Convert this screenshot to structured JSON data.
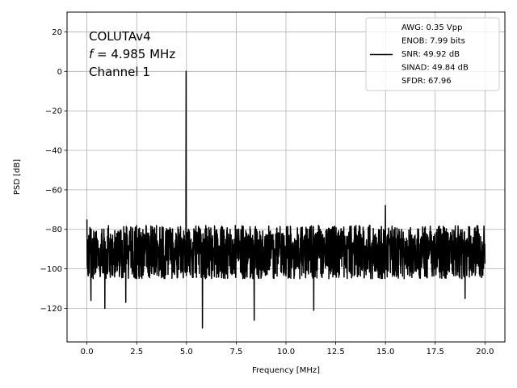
{
  "chart_data": {
    "type": "line",
    "title": "",
    "xlabel": "Frequency [MHz]",
    "ylabel": "PSD [dB]",
    "xlim": [
      -1.0,
      21.0
    ],
    "ylim": [
      -137,
      30
    ],
    "xticks": [
      0.0,
      2.5,
      5.0,
      7.5,
      10.0,
      12.5,
      15.0,
      17.5,
      20.0
    ],
    "xtick_labels": [
      "0.0",
      "2.5",
      "5.0",
      "7.5",
      "10.0",
      "12.5",
      "15.0",
      "17.5",
      "20.0"
    ],
    "yticks": [
      20,
      0,
      -20,
      -40,
      -60,
      -80,
      -100,
      -120
    ],
    "ytick_labels": [
      "20",
      "0",
      "−20",
      "−40",
      "−60",
      "−80",
      "−100",
      "−120"
    ],
    "grid": true,
    "annotation": {
      "line1": "COLUTAv4",
      "line2_var": "f",
      "line2_rest": " = 4.985 MHz",
      "line3": "Channel 1"
    },
    "legend": {
      "placement": "top-right",
      "entries": [
        "AWG: 0.35 Vpp",
        "ENOB: 7.99 bits",
        "SNR: 49.92 dB",
        "SINAD: 49.84 dB",
        "SFDR: 67.96"
      ]
    },
    "series": [
      {
        "color": "#000000",
        "noise_floor_db": -90,
        "noise_range_db": [
          -105,
          -78
        ],
        "peaks": [
          {
            "x": 4.985,
            "y": 0
          },
          {
            "x": 15.0,
            "y": -68
          },
          {
            "x": 0.0,
            "y": -75
          },
          {
            "x": 5.8,
            "y": -130
          },
          {
            "x": 8.4,
            "y": -126
          },
          {
            "x": 11.4,
            "y": -121
          },
          {
            "x": 0.9,
            "y": -120
          },
          {
            "x": 1.95,
            "y": -117
          },
          {
            "x": 0.2,
            "y": -116
          },
          {
            "x": 19.0,
            "y": -115
          }
        ]
      }
    ]
  }
}
